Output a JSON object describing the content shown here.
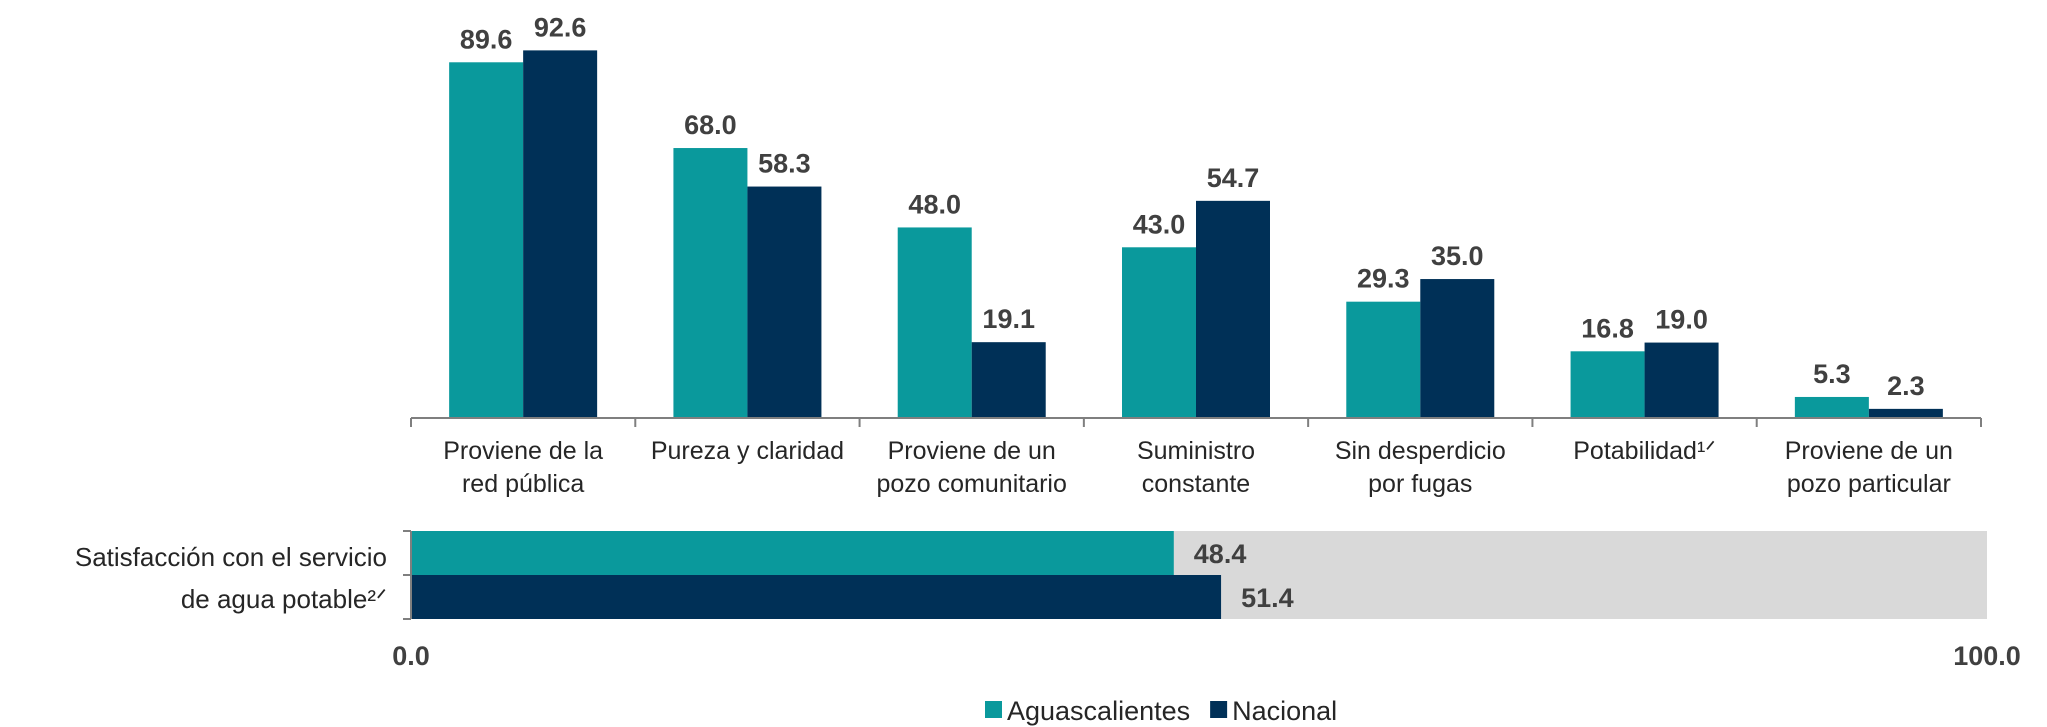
{
  "chart_data": [
    {
      "type": "bar",
      "categories": [
        "Proviene de la\nred pública",
        "Pureza y claridad",
        "Proviene de un\npozo comunitario",
        "Suministro\nconstante",
        "Sin desperdicio\npor fugas",
        "Potabilidad¹ᐟ",
        "Proviene de un\npozo particular"
      ],
      "series": [
        {
          "name": "Aguascalientes",
          "color": "#0a999c",
          "values": [
            89.6,
            68.0,
            48.0,
            43.0,
            29.3,
            16.8,
            5.3
          ],
          "value_labels": [
            "89.6",
            "68.0",
            "48.0",
            "43.0",
            "29.3",
            "16.8",
            "5.3"
          ]
        },
        {
          "name": "Nacional",
          "color": "#003057",
          "values": [
            92.6,
            58.3,
            19.1,
            54.7,
            35.0,
            19.0,
            2.3
          ],
          "value_labels": [
            "92.6",
            "58.3",
            "19.1",
            "54.7",
            "35.0",
            "19.0",
            "2.3"
          ]
        }
      ],
      "ylim": [
        0,
        100
      ]
    },
    {
      "type": "hbar",
      "categories": [
        "Satisfacción con el servicio\nde agua potable²ᐟ"
      ],
      "series": [
        {
          "name": "Aguascalientes",
          "color": "#0a999c",
          "values": [
            48.4
          ]
        },
        {
          "name": "Nacional",
          "color": "#003057",
          "values": [
            51.4
          ]
        }
      ],
      "xlim": [
        0,
        100
      ],
      "xticks": [
        {
          "value": 0,
          "label": "0.0"
        },
        {
          "value": 100,
          "label": "100.0"
        }
      ],
      "background": "#d9d9d9"
    }
  ]
}
